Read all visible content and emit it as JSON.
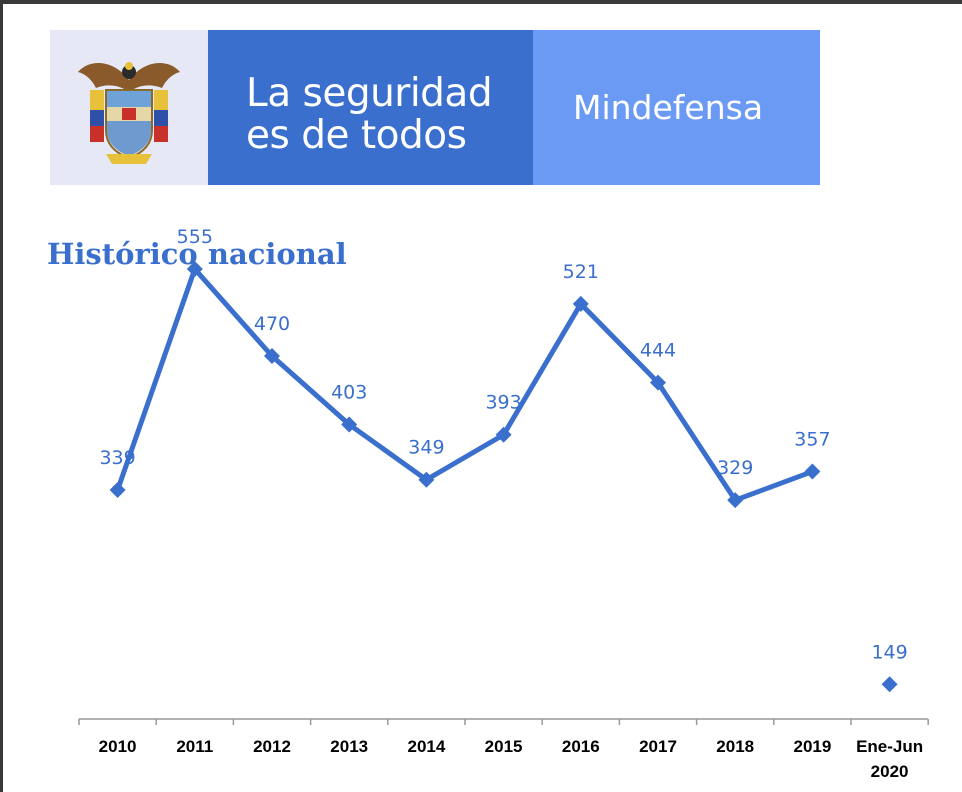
{
  "banner": {
    "slogan_line1": "La seguridad",
    "slogan_line2": "es de todos",
    "brand": "Mindefensa"
  },
  "colors": {
    "accent": "#3a6fce",
    "brand_light": "#6b9af4",
    "seal_bg": "#e6e9f5"
  },
  "chart_data": {
    "type": "line",
    "title": "Histórico nacional",
    "categories": [
      "2010",
      "2011",
      "2012",
      "2013",
      "2014",
      "2015",
      "2016",
      "2017",
      "2018",
      "2019",
      "Ene-Jun 2020"
    ],
    "values": [
      339,
      555,
      470,
      403,
      349,
      393,
      521,
      444,
      329,
      357,
      149
    ],
    "connected_through_index": 9,
    "xlabel": "",
    "ylabel": "",
    "grid": false,
    "legend": "none",
    "marker": "diamond",
    "y_axis_visible": false
  }
}
